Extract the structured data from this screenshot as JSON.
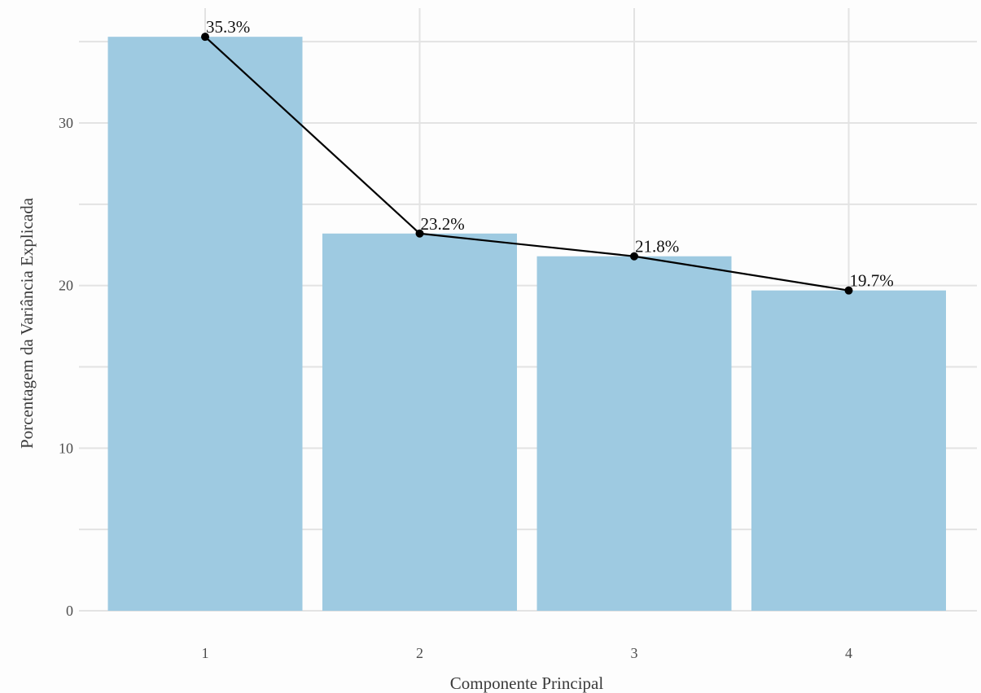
{
  "chart_data": {
    "type": "bar",
    "categories": [
      "1",
      "2",
      "3",
      "4"
    ],
    "values": [
      35.3,
      23.2,
      21.8,
      19.7
    ],
    "data_labels": [
      "35.3%",
      "23.2%",
      "21.8%",
      "19.7%"
    ],
    "overlay": {
      "type": "line",
      "markers": true,
      "color": "#000000"
    },
    "title": "",
    "xlabel": "Componente Principal",
    "ylabel": "Porcentagem da Variância Explicada",
    "yticks": [
      0,
      10,
      20,
      30
    ],
    "ytick_labels": [
      "0",
      "10",
      "20",
      "30"
    ],
    "ylim": [
      0,
      37
    ],
    "grid": true,
    "bar_color": "#9ecae1",
    "line_color": "#000000",
    "grid_color": "#e3e3e3",
    "background": "#fdfdfd"
  }
}
